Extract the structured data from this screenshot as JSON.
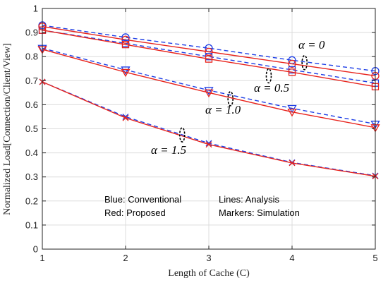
{
  "chart_data": {
    "type": "line",
    "xlabel": "Length of Cache (C)",
    "ylabel": "Normalized Load[Connection/Client/View]",
    "xlim": [
      1,
      5
    ],
    "ylim": [
      0,
      1
    ],
    "x_ticks": [
      "1",
      "2",
      "3",
      "4",
      "5"
    ],
    "y_ticks": [
      "0",
      "0.1",
      "0.2",
      "0.3",
      "0.4",
      "0.5",
      "0.6",
      "0.7",
      "0.8",
      "0.9",
      "1"
    ],
    "grid": true,
    "x": [
      1,
      2,
      3,
      4,
      5
    ],
    "colors": {
      "conventional": "#1f3fe6",
      "proposed": "#e8231c"
    },
    "series": [
      {
        "group": "alpha=0",
        "scheme": "conventional",
        "line": "dashed",
        "marker": "circle",
        "analysis": [
          0.93,
          0.88,
          0.835,
          0.785,
          0.74
        ],
        "simulation": [
          0.93,
          0.88,
          0.835,
          0.785,
          0.74
        ]
      },
      {
        "group": "alpha=0",
        "scheme": "proposed",
        "line": "solid",
        "marker": "circle",
        "analysis": [
          0.925,
          0.87,
          0.82,
          0.77,
          0.72
        ],
        "simulation": [
          0.925,
          0.87,
          0.82,
          0.77,
          0.72
        ]
      },
      {
        "group": "alpha=0.5",
        "scheme": "conventional",
        "line": "dashed",
        "marker": "square",
        "analysis": [
          0.91,
          0.855,
          0.8,
          0.745,
          0.69
        ],
        "simulation": [
          0.91,
          0.855,
          0.8,
          0.745,
          0.69
        ]
      },
      {
        "group": "alpha=0.5",
        "scheme": "proposed",
        "line": "solid",
        "marker": "square",
        "analysis": [
          0.91,
          0.85,
          0.79,
          0.735,
          0.675
        ],
        "simulation": [
          0.91,
          0.85,
          0.79,
          0.735,
          0.675
        ]
      },
      {
        "group": "alpha=1.0",
        "scheme": "conventional",
        "line": "dashed",
        "marker": "triangle-down",
        "analysis": [
          0.835,
          0.745,
          0.66,
          0.585,
          0.52
        ],
        "simulation": [
          0.835,
          0.745,
          0.66,
          0.585,
          0.52
        ]
      },
      {
        "group": "alpha=1.0",
        "scheme": "proposed",
        "line": "solid",
        "marker": "triangle-down",
        "analysis": [
          0.83,
          0.735,
          0.65,
          0.57,
          0.505
        ],
        "simulation": [
          0.83,
          0.735,
          0.65,
          0.57,
          0.505
        ]
      },
      {
        "group": "alpha=1.5",
        "scheme": "conventional",
        "line": "dashed",
        "marker": "x",
        "analysis": [
          0.695,
          0.55,
          0.44,
          0.36,
          0.305
        ],
        "simulation": [
          0.695,
          0.55,
          0.44,
          0.36,
          0.305
        ]
      },
      {
        "group": "alpha=1.5",
        "scheme": "proposed",
        "line": "solid",
        "marker": "x",
        "analysis": [
          0.695,
          0.545,
          0.435,
          0.358,
          0.303
        ],
        "simulation": [
          0.695,
          0.545,
          0.435,
          0.358,
          0.303
        ]
      }
    ],
    "annotations": [
      {
        "text": "α = 0",
        "x": 4.05,
        "y": 0.775
      },
      {
        "text": "α = 0.5",
        "x": 3.6,
        "y": 0.76
      },
      {
        "text": "α = 1.0",
        "x": 3.05,
        "y": 0.64
      },
      {
        "text": "α = 1.5",
        "x": 2.65,
        "y": 0.48
      }
    ],
    "notes": [
      "Blue: Conventional",
      "Red: Proposed",
      "Lines: Analysis",
      "Markers: Simulation"
    ]
  }
}
